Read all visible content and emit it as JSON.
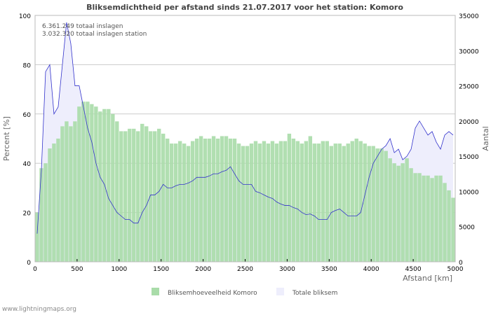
{
  "chart_data": {
    "type": "bar",
    "title": "Bliksemdichtheid per afstand sinds 21.07.2017 voor het station: Komoro",
    "xlabel": "Afstand   [km]",
    "ylabel": "Percent   [%]",
    "y2label": "Aantal",
    "xlim": [
      0,
      5000
    ],
    "ylim": [
      0,
      100
    ],
    "y2lim": [
      0,
      35000
    ],
    "bin_km": 50,
    "x_ticks": [
      "0",
      "500",
      "1000",
      "1500",
      "2000",
      "2500",
      "3000",
      "3500",
      "4000",
      "4500",
      "5000"
    ],
    "y_ticks": [
      "0",
      "20",
      "40",
      "60",
      "80",
      "100"
    ],
    "y2_ticks": [
      "0",
      "5000",
      "10000",
      "15000",
      "20000",
      "25000",
      "30000",
      "35000"
    ],
    "grid": true,
    "legend_position": "bottom-center",
    "annotations": [
      "6.361.249 totaal inslagen",
      "3.032.320 totaal inslagen station"
    ],
    "series": [
      {
        "name": "Bliksemhoeveelheid Komoro",
        "axis": "left",
        "color": "#a9dca9",
        "kind": "bar",
        "values": [
          20,
          38,
          40,
          46,
          48,
          50,
          55,
          57,
          55,
          57,
          63,
          65,
          65,
          64,
          63,
          61,
          62,
          62,
          60,
          57,
          53,
          53,
          54,
          54,
          53,
          56,
          55,
          53,
          53,
          54,
          52,
          50,
          48,
          48,
          49,
          48,
          47,
          49,
          50,
          51,
          50,
          50,
          51,
          50,
          51,
          51,
          50,
          50,
          48,
          47,
          47,
          48,
          49,
          48,
          49,
          48,
          49,
          48,
          49,
          49,
          52,
          50,
          49,
          48,
          49,
          51,
          48,
          48,
          49,
          49,
          47,
          48,
          48,
          47,
          48,
          49,
          50,
          49,
          48,
          47,
          47,
          46,
          46,
          45,
          42,
          40,
          39,
          40,
          42,
          38,
          36,
          36,
          35,
          35,
          34,
          35,
          35,
          32,
          29,
          26
        ]
      },
      {
        "name": "Totale bliksem",
        "axis": "right",
        "color": "#3333cc",
        "fill": "#eeeefc",
        "kind": "area",
        "values": [
          4000,
          13000,
          27000,
          28000,
          21000,
          22000,
          28000,
          34000,
          31000,
          25000,
          25000,
          22000,
          19000,
          17000,
          14000,
          12000,
          11000,
          9000,
          8000,
          7000,
          6500,
          6000,
          6000,
          5500,
          5500,
          7000,
          8000,
          9500,
          9500,
          10000,
          11000,
          10500,
          10500,
          10800,
          11000,
          11000,
          11200,
          11500,
          12000,
          12000,
          12000,
          12200,
          12500,
          12500,
          12800,
          13000,
          13500,
          12500,
          11500,
          11000,
          11000,
          11000,
          10000,
          9800,
          9500,
          9200,
          9000,
          8500,
          8200,
          8000,
          8000,
          7700,
          7500,
          7000,
          6700,
          6800,
          6500,
          6000,
          6000,
          6000,
          7000,
          7300,
          7500,
          7000,
          6500,
          6500,
          6500,
          7000,
          9500,
          12000,
          14000,
          15000,
          16000,
          16500,
          17500,
          15500,
          16000,
          14500,
          15000,
          16000,
          19000,
          20000,
          19000,
          18000,
          18500,
          17000,
          16000,
          18000,
          18500,
          18000
        ]
      }
    ]
  },
  "footer": "www.lightningmaps.org"
}
